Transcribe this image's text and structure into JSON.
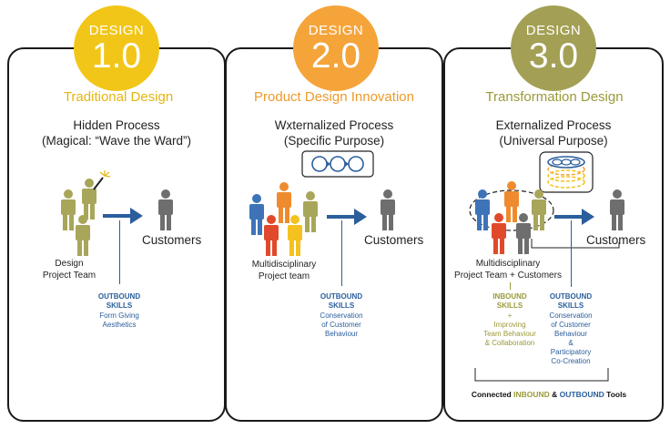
{
  "colors": {
    "yellow": "#f2c618",
    "orange": "#f5a43a",
    "olive": "#a3a055",
    "blue": "#2a5e9c",
    "person_olive": "#a8a65a",
    "person_gray": "#6e6e6e",
    "person_blue": "#3e73b8",
    "person_orange": "#ef8b2f",
    "person_red": "#e04a2b",
    "person_yellow": "#f3c21f"
  },
  "panels": [
    {
      "badge_word": "DESIGN",
      "badge_number": "1.0",
      "heading": "Traditional Design",
      "process_line1": "Hidden Process",
      "process_line2": "(Magical: “Wave the Ward”)",
      "customers": "Customers",
      "team_line1": "Design",
      "team_line2": "Project Team",
      "outbound_title1": "OUTBOUND",
      "outbound_title2": "SKILLS",
      "outbound_text": [
        "Form Giving",
        "Aesthetics"
      ]
    },
    {
      "badge_word": "DESIGN",
      "badge_number": "2.0",
      "heading": "Product Design Innovation",
      "process_line1": "Wxternalized Process",
      "process_line2": "(Specific Purpose)",
      "customers": "Customers",
      "team_line1": "Multidisciplinary",
      "team_line2": "Project team",
      "outbound_title1": "OUTBOUND",
      "outbound_title2": "SKILLS",
      "outbound_text": [
        "Conservation",
        "of Customer",
        "Behaviour"
      ]
    },
    {
      "badge_word": "DESIGN",
      "badge_number": "3.0",
      "heading": "Transformation Design",
      "process_line1": "Externalized Process",
      "process_line2": "(Universal Purpose)",
      "customers": "Customers",
      "team_line1": "Multidisciplinary",
      "team_line2": "Project Team + Customers",
      "inbound_title1": "INBOUND",
      "inbound_title2": "SKILLS",
      "inbound_text": [
        "+",
        "Improving",
        "Team Behaviour",
        "& Collaboration"
      ],
      "outbound_title1": "OUTBOUND",
      "outbound_title2": "SKILLS",
      "outbound_text": [
        "Conservation",
        "of Customer",
        "Behaviour",
        "&",
        "Participatory",
        "Co-Creation"
      ],
      "footer_prefix": "Connected ",
      "footer_inbound": "INBOUND",
      "footer_mid": " & ",
      "footer_outbound": "OUTBOUND",
      "footer_suffix": " Tools"
    }
  ]
}
